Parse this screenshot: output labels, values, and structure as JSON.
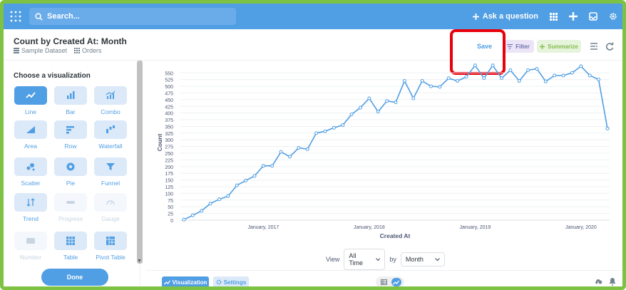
{
  "topbar": {
    "search_placeholder": "Search...",
    "ask_label": "Ask a question"
  },
  "question": {
    "title": "Count by Created At: Month",
    "database": "Sample Dataset",
    "table": "Orders",
    "save_label": "Save",
    "filter_label": "Filter",
    "summarize_label": "Summarize"
  },
  "sidebar": {
    "heading": "Choose a visualization",
    "items": [
      {
        "label": "Line",
        "icon": "line-chart-icon",
        "active": true,
        "disabled": false
      },
      {
        "label": "Bar",
        "icon": "bar-chart-icon",
        "active": false,
        "disabled": false
      },
      {
        "label": "Combo",
        "icon": "combo-chart-icon",
        "active": false,
        "disabled": false
      },
      {
        "label": "Area",
        "icon": "area-chart-icon",
        "active": false,
        "disabled": false
      },
      {
        "label": "Row",
        "icon": "row-chart-icon",
        "active": false,
        "disabled": false
      },
      {
        "label": "Waterfall",
        "icon": "waterfall-chart-icon",
        "active": false,
        "disabled": false
      },
      {
        "label": "Scatter",
        "icon": "scatter-chart-icon",
        "active": false,
        "disabled": false
      },
      {
        "label": "Pie",
        "icon": "pie-chart-icon",
        "active": false,
        "disabled": false
      },
      {
        "label": "Funnel",
        "icon": "funnel-chart-icon",
        "active": false,
        "disabled": false
      },
      {
        "label": "Trend",
        "icon": "trend-icon",
        "active": false,
        "disabled": false
      },
      {
        "label": "Progress",
        "icon": "progress-icon",
        "active": false,
        "disabled": true
      },
      {
        "label": "Gauge",
        "icon": "gauge-icon",
        "active": false,
        "disabled": true
      },
      {
        "label": "Number",
        "icon": "number-icon",
        "active": false,
        "disabled": true
      },
      {
        "label": "Table",
        "icon": "table-icon",
        "active": false,
        "disabled": false
      },
      {
        "label": "Pivot Table",
        "icon": "pivot-table-icon",
        "active": false,
        "disabled": false
      }
    ],
    "done_label": "Done"
  },
  "view_controls": {
    "view_label": "View",
    "range_value": "All Time",
    "by_label": "by",
    "unit_value": "Month"
  },
  "footer": {
    "visualization_label": "Visualization",
    "settings_label": "Settings"
  },
  "colors": {
    "brand": "#509ee3",
    "highlight": "#e8000b",
    "border": "#7dc242"
  },
  "chart_data": {
    "type": "line",
    "title": "",
    "xlabel": "Created At",
    "ylabel": "Count",
    "ylim": [
      0,
      580
    ],
    "yticks": [
      0,
      25,
      50,
      75,
      100,
      125,
      150,
      175,
      200,
      225,
      250,
      275,
      300,
      325,
      350,
      375,
      400,
      425,
      450,
      475,
      500,
      525,
      550
    ],
    "xtick_labels": [
      "January, 2017",
      "January, 2018",
      "January, 2019",
      "January, 2020"
    ],
    "x_start": "2016-04",
    "series": [
      {
        "values": [
          2,
          18,
          35,
          62,
          78,
          90,
          130,
          148,
          165,
          203,
          203,
          255,
          237,
          270,
          265,
          325,
          332,
          345,
          355,
          395,
          420,
          455,
          405,
          445,
          440,
          520,
          455,
          520,
          500,
          498,
          530,
          520,
          535,
          578,
          530,
          578,
          530,
          560,
          520,
          560,
          565,
          518,
          540,
          540,
          550,
          575,
          540,
          525,
          342
        ]
      }
    ]
  }
}
